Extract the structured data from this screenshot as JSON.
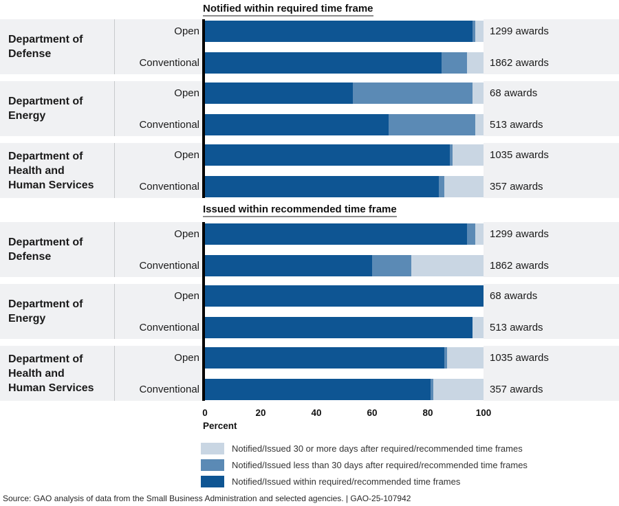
{
  "source": "Source: GAO analysis of data from the Small Business Administration and selected agencies.  |  GAO-25-107942",
  "colors": {
    "within": "#0e5593",
    "less30": "#5b8ab5",
    "more30": "#c9d6e3",
    "band_bg": "#f0f1f3",
    "axis_line": "#000000",
    "divider": "#c7c9cb"
  },
  "axis": {
    "label": "Percent",
    "ticks": [
      "0",
      "20",
      "40",
      "60",
      "80",
      "100"
    ],
    "min": 0,
    "max": 100
  },
  "legend": [
    {
      "key": "more30",
      "label": "Notified/Issued 30 or more days after required/recommended time frames"
    },
    {
      "key": "less30",
      "label": "Notified/Issued less than 30 days after required/recommended time frames"
    },
    {
      "key": "within",
      "label": "Notified/Issued within required/recommended time frames"
    }
  ],
  "chart_data": {
    "type": "bar",
    "subtype": "horizontal-stacked",
    "unit": "percent of awards",
    "xlabel": "Percent",
    "xlim": [
      0,
      100
    ],
    "x_ticks": [
      0,
      20,
      40,
      60,
      80,
      100
    ],
    "grid": false,
    "legend_position": "bottom",
    "series_names": [
      "Notified/Issued within required/recommended time frames",
      "Notified/Issued less than 30 days after required/recommended time frames",
      "Notified/Issued 30 or more days after required/recommended time frames"
    ],
    "panels": [
      {
        "title": "Notified within required time frame",
        "groups": [
          {
            "department_lines": [
              "Department of",
              "Defense"
            ],
            "rows": [
              {
                "label": "Open",
                "annotation": "1299 awards",
                "within": 96,
                "less30": 1,
                "more30": 3
              },
              {
                "label": "Conventional",
                "annotation": "1862 awards",
                "within": 85,
                "less30": 9,
                "more30": 6
              }
            ]
          },
          {
            "department_lines": [
              "Department of",
              "Energy"
            ],
            "rows": [
              {
                "label": "Open",
                "annotation": "68 awards",
                "within": 53,
                "less30": 43,
                "more30": 4
              },
              {
                "label": "Conventional",
                "annotation": "513 awards",
                "within": 66,
                "less30": 31,
                "more30": 3
              }
            ]
          },
          {
            "department_lines": [
              "Department of",
              "Health and",
              "Human Services"
            ],
            "rows": [
              {
                "label": "Open",
                "annotation": "1035 awards",
                "within": 88,
                "less30": 1,
                "more30": 11
              },
              {
                "label": "Conventional",
                "annotation": "357 awards",
                "within": 84,
                "less30": 2,
                "more30": 14
              }
            ]
          }
        ]
      },
      {
        "title": "Issued within recommended time frame",
        "groups": [
          {
            "department_lines": [
              "Department of",
              "Defense"
            ],
            "rows": [
              {
                "label": "Open",
                "annotation": "1299 awards",
                "within": 94,
                "less30": 3,
                "more30": 3
              },
              {
                "label": "Conventional",
                "annotation": "1862 awards",
                "within": 60,
                "less30": 14,
                "more30": 26
              }
            ]
          },
          {
            "department_lines": [
              "Department of",
              "Energy"
            ],
            "rows": [
              {
                "label": "Open",
                "annotation": "68 awards",
                "within": 100,
                "less30": 0,
                "more30": 0
              },
              {
                "label": "Conventional",
                "annotation": "513 awards",
                "within": 96,
                "less30": 0,
                "more30": 4
              }
            ]
          },
          {
            "department_lines": [
              "Department of",
              "Health and",
              "Human Services"
            ],
            "rows": [
              {
                "label": "Open",
                "annotation": "1035 awards",
                "within": 86,
                "less30": 1,
                "more30": 13
              },
              {
                "label": "Conventional",
                "annotation": "357 awards",
                "within": 81,
                "less30": 1,
                "more30": 18
              }
            ]
          }
        ]
      }
    ]
  }
}
